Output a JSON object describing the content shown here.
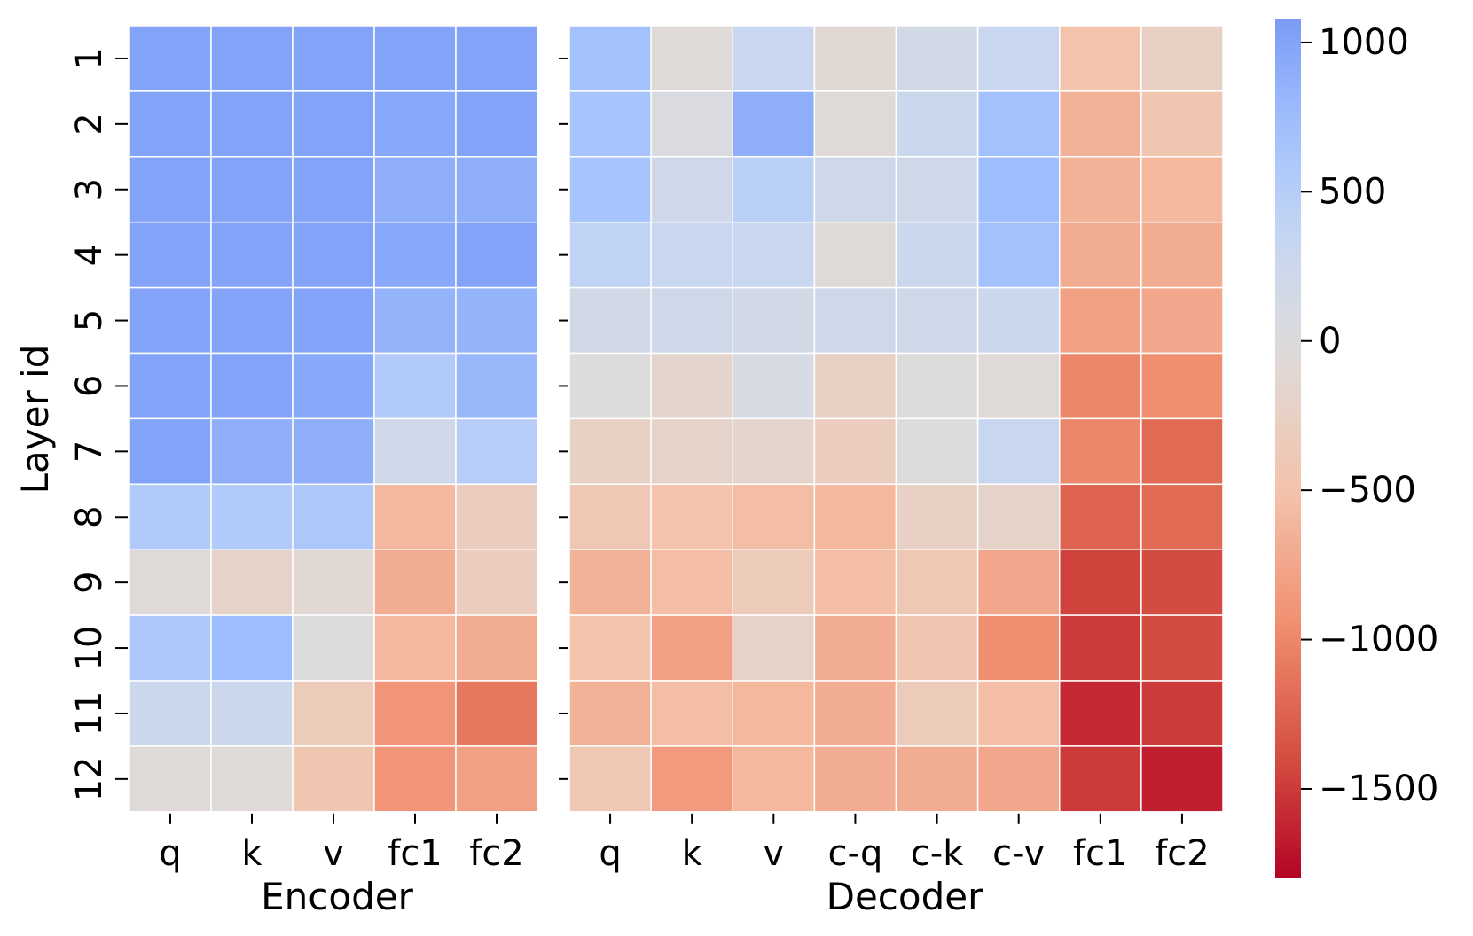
{
  "chart_data": {
    "type": "heatmap",
    "colormap": "coolwarm",
    "ylabel": "Layer id",
    "row_labels": [
      "1",
      "2",
      "3",
      "4",
      "5",
      "6",
      "7",
      "8",
      "9",
      "10",
      "11",
      "12"
    ],
    "panels": [
      {
        "name": "encoder",
        "xlabel": "Encoder",
        "columns": [
          "q",
          "k",
          "v",
          "fc1",
          "fc2"
        ],
        "values": [
          [
            1000,
            1000,
            1000,
            1000,
            1000
          ],
          [
            1000,
            1000,
            1000,
            950,
            1000
          ],
          [
            1000,
            1000,
            1000,
            900,
            900
          ],
          [
            1000,
            1000,
            1000,
            950,
            1000
          ],
          [
            1000,
            1000,
            1000,
            850,
            850
          ],
          [
            1000,
            1000,
            950,
            550,
            800
          ],
          [
            1000,
            900,
            900,
            200,
            500
          ],
          [
            550,
            550,
            600,
            -600,
            -300
          ],
          [
            -50,
            -200,
            -100,
            -700,
            -300
          ],
          [
            600,
            750,
            0,
            -600,
            -700
          ],
          [
            250,
            250,
            -350,
            -900,
            -1100
          ],
          [
            -50,
            -50,
            -450,
            -900,
            -800
          ]
        ]
      },
      {
        "name": "decoder",
        "xlabel": "Decoder",
        "columns": [
          "q",
          "k",
          "v",
          "c-q",
          "c-k",
          "c-v",
          "fc1",
          "fc2"
        ],
        "values": [
          [
            700,
            -50,
            300,
            -100,
            150,
            300,
            -500,
            -250
          ],
          [
            650,
            50,
            900,
            -50,
            250,
            700,
            -650,
            -450
          ],
          [
            650,
            200,
            450,
            200,
            200,
            750,
            -650,
            -600
          ],
          [
            400,
            300,
            300,
            -50,
            250,
            700,
            -700,
            -700
          ],
          [
            150,
            200,
            150,
            200,
            200,
            250,
            -800,
            -750
          ],
          [
            0,
            -150,
            100,
            -250,
            0,
            -50,
            -1000,
            -950
          ],
          [
            -250,
            -200,
            -150,
            -300,
            0,
            300,
            -1000,
            -1200
          ],
          [
            -400,
            -500,
            -550,
            -600,
            -250,
            -200,
            -1250,
            -1200
          ],
          [
            -650,
            -550,
            -350,
            -550,
            -400,
            -750,
            -1450,
            -1400
          ],
          [
            -500,
            -800,
            -200,
            -700,
            -450,
            -950,
            -1500,
            -1400
          ],
          [
            -650,
            -550,
            -600,
            -700,
            -350,
            -550,
            -1600,
            -1500
          ],
          [
            -400,
            -850,
            -600,
            -700,
            -700,
            -750,
            -1500,
            -1650
          ]
        ]
      }
    ],
    "colorbar": {
      "min": -1800,
      "max": 1080,
      "ticks": [
        1000,
        500,
        0,
        -500,
        -1000,
        -1500
      ],
      "tick_labels": [
        "1000",
        "500",
        "0",
        "−500",
        "−1000",
        "−1500"
      ]
    }
  }
}
